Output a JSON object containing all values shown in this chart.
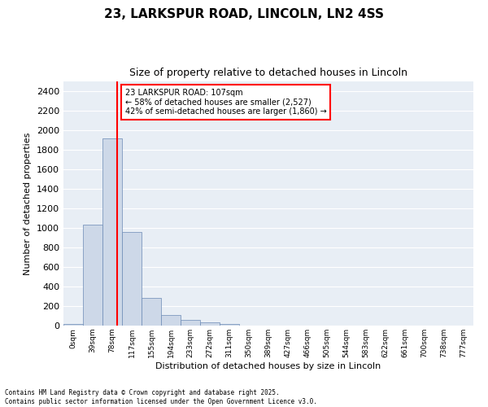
{
  "title_line1": "23, LARKSPUR ROAD, LINCOLN, LN2 4SS",
  "title_line2": "Size of property relative to detached houses in Lincoln",
  "xlabel": "Distribution of detached houses by size in Lincoln",
  "ylabel": "Number of detached properties",
  "bin_labels": [
    "0sqm",
    "39sqm",
    "78sqm",
    "117sqm",
    "155sqm",
    "194sqm",
    "233sqm",
    "272sqm",
    "311sqm",
    "350sqm",
    "389sqm",
    "427sqm",
    "466sqm",
    "505sqm",
    "544sqm",
    "583sqm",
    "622sqm",
    "661sqm",
    "700sqm",
    "738sqm",
    "777sqm"
  ],
  "bar_values": [
    20,
    1030,
    1920,
    960,
    280,
    110,
    55,
    35,
    20,
    0,
    0,
    0,
    0,
    0,
    0,
    0,
    0,
    0,
    0,
    0,
    0
  ],
  "bar_color": "#cdd8e8",
  "bar_edge_color": "#6a8ab5",
  "vline_x": 107,
  "bin_width": 39,
  "annotation_text": "23 LARKSPUR ROAD: 107sqm\n← 58% of detached houses are smaller (2,527)\n42% of semi-detached houses are larger (1,860) →",
  "annotation_box_color": "white",
  "annotation_box_edge": "red",
  "vline_color": "red",
  "ylim": [
    0,
    2500
  ],
  "yticks": [
    0,
    200,
    400,
    600,
    800,
    1000,
    1200,
    1400,
    1600,
    1800,
    2000,
    2200,
    2400
  ],
  "footnote": "Contains HM Land Registry data © Crown copyright and database right 2025.\nContains public sector information licensed under the Open Government Licence v3.0.",
  "bg_color": "#e8eef5",
  "grid_color": "white"
}
